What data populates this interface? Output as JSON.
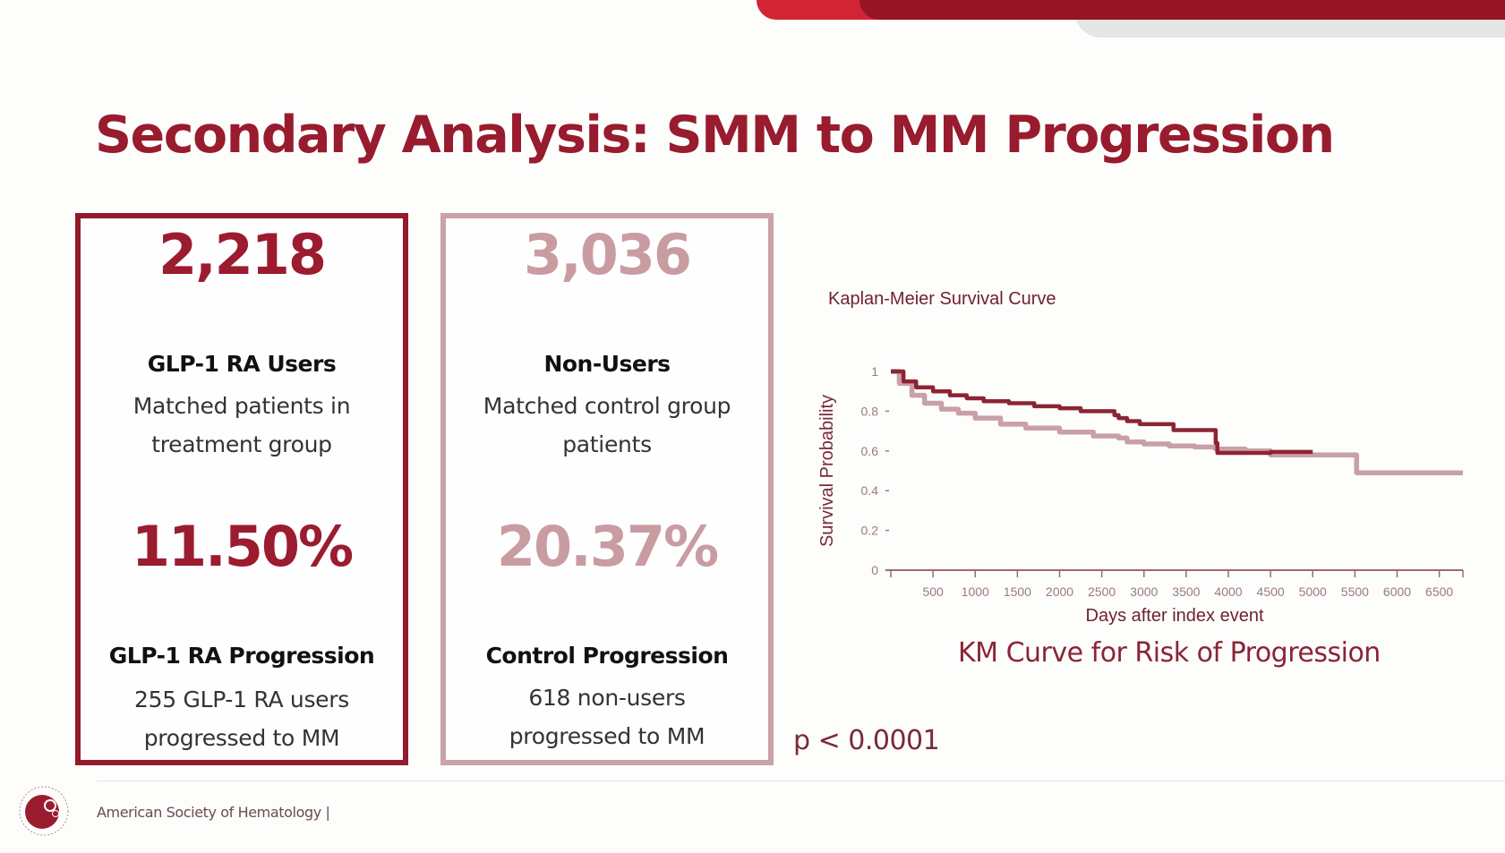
{
  "slide": {
    "title": "Secondary Analysis: SMM to MM Progression",
    "colors": {
      "primary": "#981b2e",
      "secondary": "#c99ca2",
      "accent_red": "#d22433"
    }
  },
  "cards": [
    {
      "count": "2,218",
      "label": "GLP-1 RA Users",
      "desc_lines": [
        "Matched patients in",
        "treatment group"
      ],
      "rate": "11.50%",
      "rate_label": "GLP-1 RA Progression",
      "rate_desc_lines": [
        "255 GLP-1 RA users",
        "progressed to MM"
      ]
    },
    {
      "count": "3,036",
      "label": "Non-Users",
      "desc_lines": [
        "Matched control group",
        "patients"
      ],
      "rate": "20.37%",
      "rate_label": "Control Progression",
      "rate_desc_lines": [
        "618 non-users",
        "progressed to MM"
      ]
    }
  ],
  "p_value": "p < 0.0001",
  "km_caption": "KM Curve for Risk of Progression",
  "footer": {
    "org": "American Society of Hematology  |"
  },
  "chart_data": {
    "type": "line",
    "title": "Kaplan-Meier Survival Curve",
    "xlabel": "Days after index event",
    "ylabel": "Survival Probability",
    "xlim": [
      0,
      6780
    ],
    "ylim": [
      0,
      1
    ],
    "x_ticks": [
      0,
      500,
      1000,
      1500,
      2000,
      2500,
      3000,
      3500,
      4000,
      4500,
      5000,
      5500,
      6000,
      6500,
      6780
    ],
    "x_tick_labels": [
      "",
      "500",
      "1000",
      "1500",
      "2000",
      "2500",
      "3000",
      "3500",
      "4000",
      "4500",
      "5000",
      "5500",
      "6000",
      "6500",
      ""
    ],
    "y_ticks": [
      0,
      0.2,
      0.4,
      0.6,
      0.8,
      1
    ],
    "y_tick_labels": [
      "0",
      "0.2",
      "0.4",
      "0.6",
      "0.8",
      "1"
    ],
    "grid": false,
    "step": true,
    "series": [
      {
        "name": "GLP-1 RA Users",
        "color": "#8c2434",
        "x": [
          0,
          150,
          300,
          500,
          700,
          900,
          1100,
          1400,
          1700,
          2000,
          2200,
          2250,
          2550,
          2650,
          2700,
          2800,
          2950,
          3350,
          3850,
          3870,
          4250,
          4500,
          5000
        ],
        "y": [
          1.0,
          0.95,
          0.92,
          0.9,
          0.88,
          0.865,
          0.85,
          0.84,
          0.825,
          0.815,
          0.815,
          0.8,
          0.8,
          0.78,
          0.765,
          0.75,
          0.735,
          0.705,
          0.64,
          0.59,
          0.59,
          0.595,
          0.595
        ]
      },
      {
        "name": "Non-Users",
        "color": "#c9a0a6",
        "x": [
          0,
          100,
          250,
          400,
          600,
          800,
          1000,
          1300,
          1600,
          2000,
          2400,
          2700,
          2800,
          3000,
          3300,
          3600,
          3850,
          4200,
          4500,
          5500,
          5520,
          6780
        ],
        "y": [
          1.0,
          0.94,
          0.88,
          0.84,
          0.81,
          0.79,
          0.765,
          0.735,
          0.715,
          0.695,
          0.675,
          0.665,
          0.645,
          0.635,
          0.625,
          0.62,
          0.61,
          0.6,
          0.58,
          0.58,
          0.49,
          0.49
        ]
      }
    ]
  }
}
